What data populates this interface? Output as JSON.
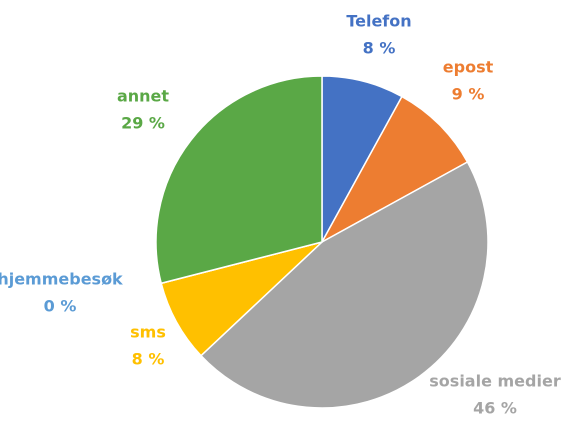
{
  "chart_data": {
    "type": "pie",
    "categories": [
      "Telefon",
      "epost",
      "sosiale medier",
      "sms",
      "hjemmebesøk",
      "annet"
    ],
    "values": [
      8,
      9,
      46,
      8,
      0,
      29
    ],
    "value_labels": [
      "8 %",
      "9 %",
      "46 %",
      "8 %",
      "0 %",
      "29 %"
    ],
    "colors": [
      "#4472c4",
      "#ed7d31",
      "#a5a5a5",
      "#ffc000",
      "#5b9bd5",
      "#5aa846"
    ]
  }
}
